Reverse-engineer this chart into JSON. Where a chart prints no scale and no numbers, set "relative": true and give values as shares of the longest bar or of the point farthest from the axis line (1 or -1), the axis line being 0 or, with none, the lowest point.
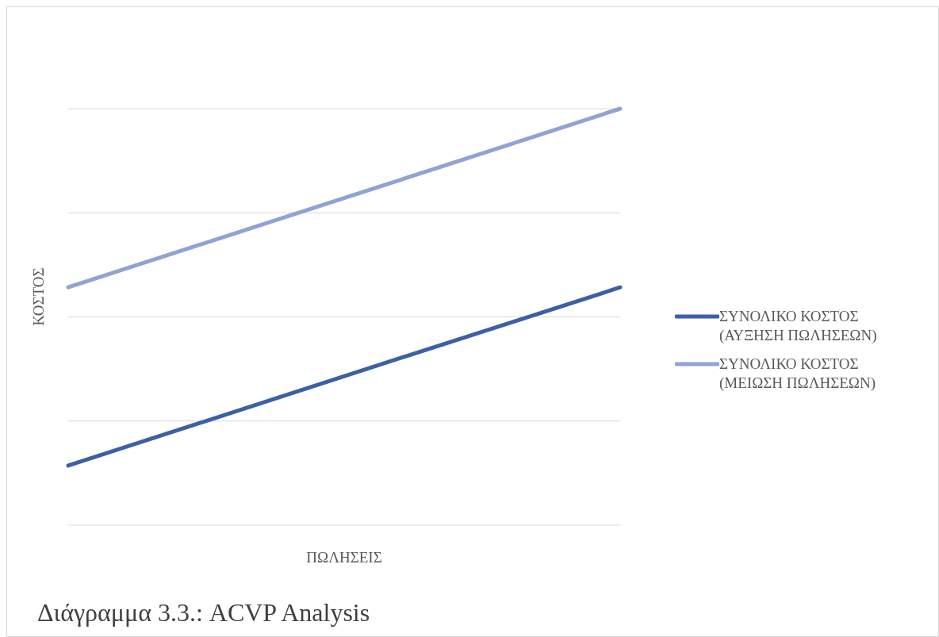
{
  "chart_data": {
    "type": "line",
    "title": "Διάγραμμα 3.3.: ACVP Analysis",
    "xlabel": "ΠΩΛΗΣΕΙΣ",
    "ylabel": "ΚΟΣΤΟΣ",
    "relative": true,
    "categories": [
      null,
      null,
      null,
      null
    ],
    "series": [
      {
        "name": "ΣΥΝΟΛΙΚΟ ΚΟΣΤΟΣ (ΑΥΞΗΣΗ ΠΩΛΗΣΕΩΝ)",
        "color": "#3c5fa8",
        "values": [
          0.143,
          0.286,
          0.429,
          0.571
        ]
      },
      {
        "name": "ΣΥΝΟΛΙΚΟ ΚΟΣΤΟΣ (ΜΕΙΩΣΗ ΠΩΛΗΣΕΩΝ)",
        "color": "#8fa3d4",
        "values": [
          0.571,
          0.714,
          0.857,
          1
        ]
      }
    ],
    "grid": "y",
    "legend": "right",
    "marker": "none",
    "line_style": "solid"
  }
}
